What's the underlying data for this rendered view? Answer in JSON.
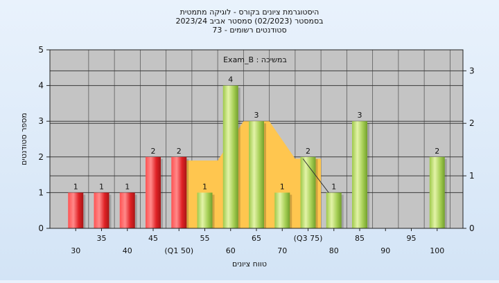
{
  "chart_data": {
    "type": "bar",
    "title_lines": [
      "היסטוגרמת ציונים בקורס - לוגיקה מתמטית",
      "בסמסטר  (02/2023)  סמסטר אביב 2023/24",
      "סטודנטים רשומים - 73"
    ],
    "xlabel": "טווח ציונים",
    "ylabel": "מספר סטודנטים",
    "annotation": "Exam_B : במשיכה",
    "ylim": [
      0,
      5
    ],
    "yticks": [
      0,
      1,
      2,
      3,
      4,
      5
    ],
    "ylim_right": [
      0,
      3.4
    ],
    "yticks_right": [
      0,
      1,
      2,
      3
    ],
    "x_tick_labels": [
      {
        "x": 30,
        "label": "30"
      },
      {
        "x": 35,
        "label": "35"
      },
      {
        "x": 40,
        "label": "40"
      },
      {
        "x": 45,
        "label": "45"
      },
      {
        "x": 50,
        "label": "(Q1 50)"
      },
      {
        "x": 55,
        "label": "55"
      },
      {
        "x": 60,
        "label": "60"
      },
      {
        "x": 65,
        "label": "65"
      },
      {
        "x": 70,
        "label": "70"
      },
      {
        "x": 75,
        "label": "(Q3 75)"
      },
      {
        "x": 80,
        "label": "80"
      },
      {
        "x": 85,
        "label": "85"
      },
      {
        "x": 90,
        "label": "90"
      },
      {
        "x": 95,
        "label": "95"
      },
      {
        "x": 100,
        "label": "100"
      }
    ],
    "bars": [
      {
        "x": 30,
        "value": 1,
        "group": "fail"
      },
      {
        "x": 35,
        "value": 1,
        "group": "fail"
      },
      {
        "x": 40,
        "value": 1,
        "group": "fail"
      },
      {
        "x": 45,
        "value": 2,
        "group": "fail"
      },
      {
        "x": 50,
        "value": 2,
        "group": "fail"
      },
      {
        "x": 55,
        "value": 1,
        "group": "pass"
      },
      {
        "x": 60,
        "value": 4,
        "group": "pass"
      },
      {
        "x": 65,
        "value": 3,
        "group": "pass"
      },
      {
        "x": 70,
        "value": 1,
        "group": "pass"
      },
      {
        "x": 75,
        "value": 2,
        "group": "pass"
      },
      {
        "x": 80,
        "value": 1,
        "group": "pass"
      },
      {
        "x": 85,
        "value": 3,
        "group": "pass"
      },
      {
        "x": 100,
        "value": 2,
        "group": "pass"
      }
    ],
    "background_area": [
      {
        "x": 50,
        "value": 1.9
      },
      {
        "x": 57.5,
        "value": 1.9
      },
      {
        "x": 62.5,
        "value": 3.0
      },
      {
        "x": 67.5,
        "value": 3.0
      },
      {
        "x": 72.5,
        "value": 1.95
      },
      {
        "x": 77.5,
        "value": 1.95
      }
    ],
    "diagonal_line": [
      {
        "x": 74,
        "value": 1.95
      },
      {
        "x": 79,
        "value": 1.0
      }
    ],
    "grid": true,
    "colors": {
      "fail_top": "#ff6a6a",
      "fail_mid": "#e3262b",
      "fail_dark": "#9c1414",
      "pass_light": "#d8ef9a",
      "pass_mid": "#a6cf55",
      "pass_dark": "#6e9a2a",
      "area_fill": "#ffc64f",
      "plot_bg": "#c4c4c4",
      "text": "#111111"
    }
  }
}
